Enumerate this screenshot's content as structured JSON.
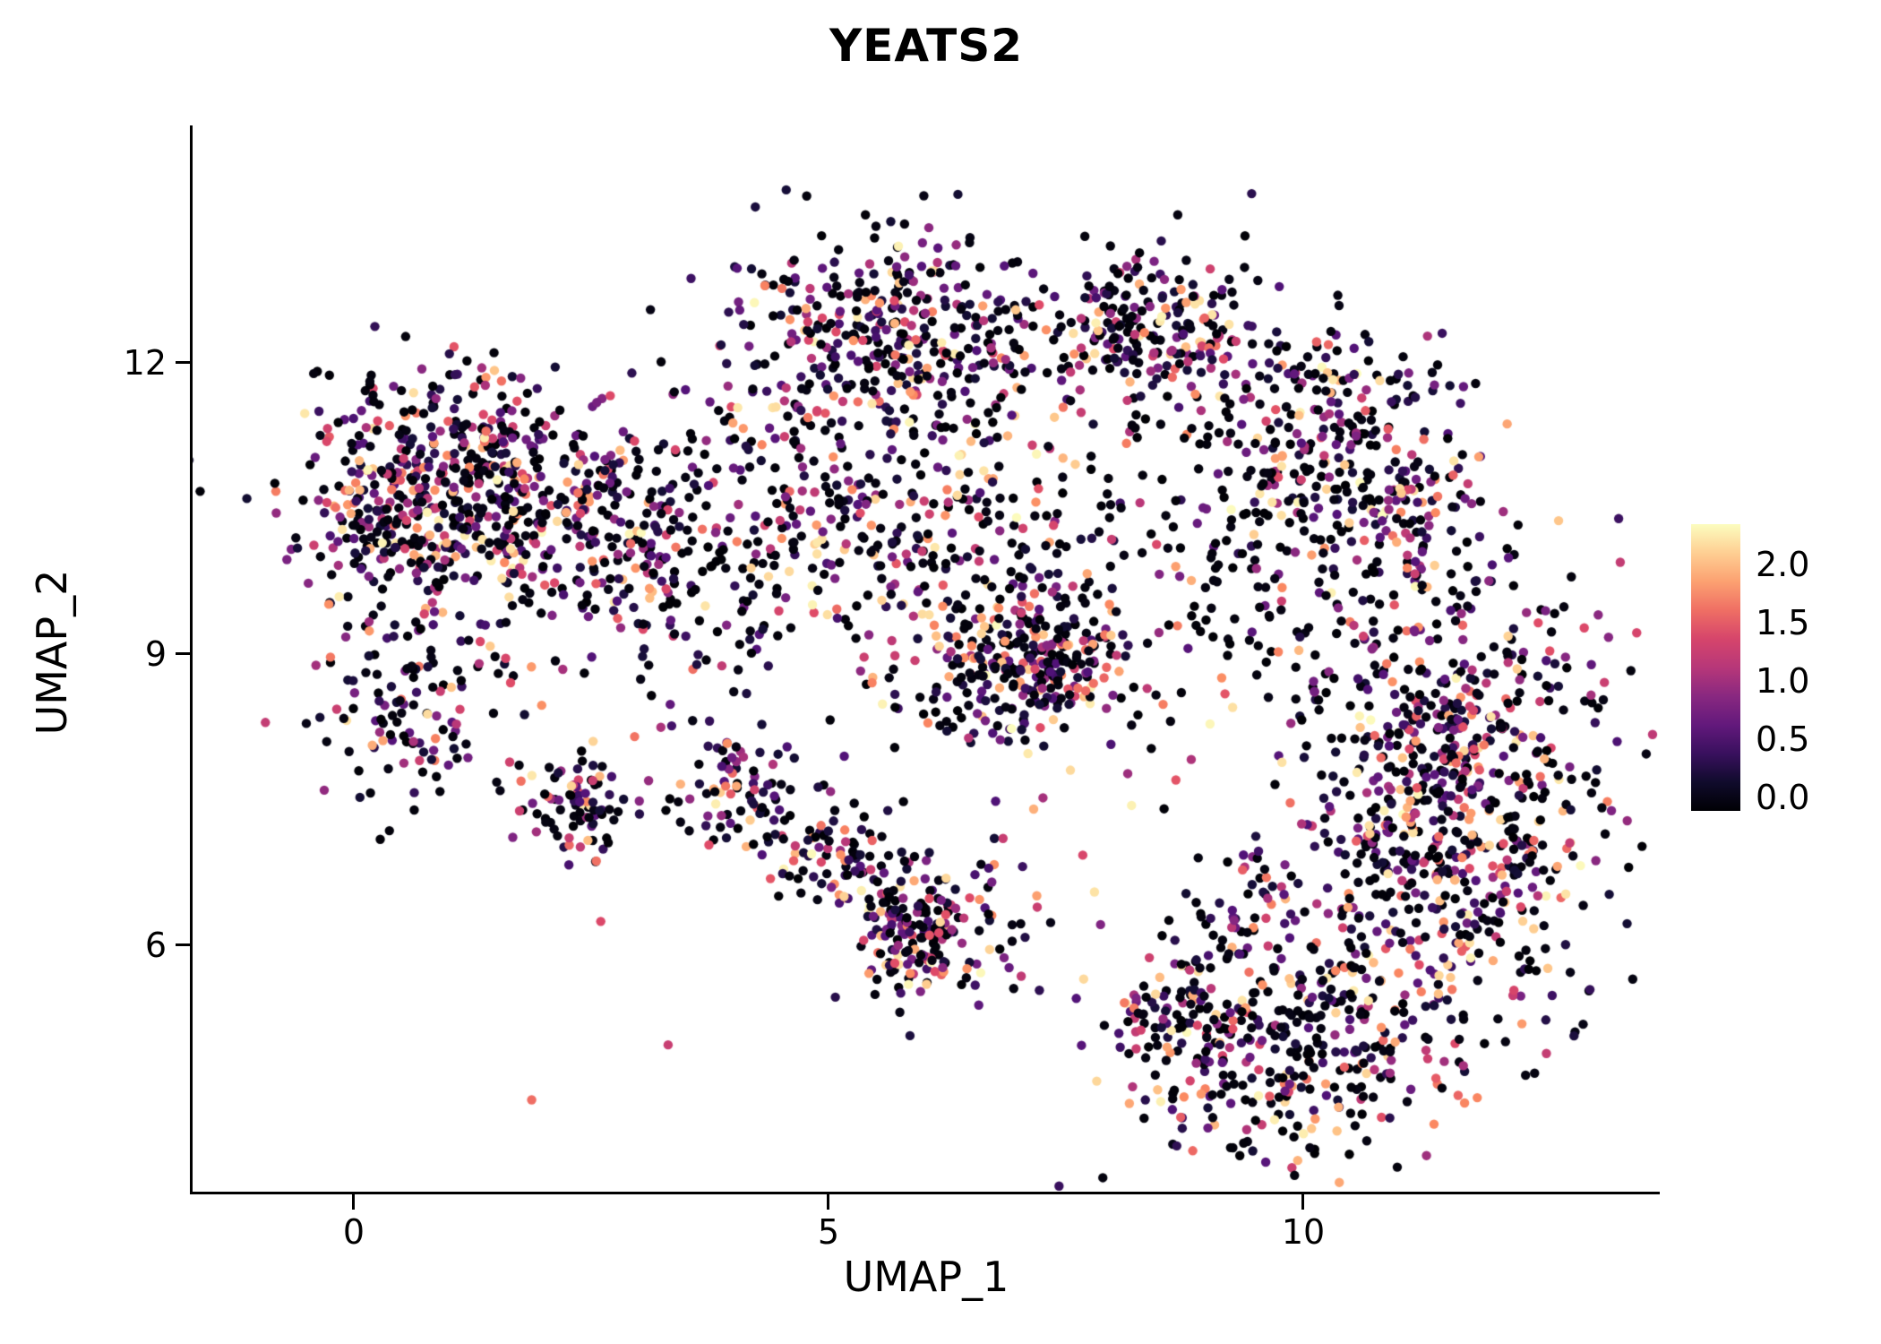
{
  "title": "YEATS2",
  "axes": {
    "x_label": "UMAP_1",
    "y_label": "UMAP_2",
    "x_ticks": [
      0,
      5,
      10
    ],
    "x_tick_labels": [
      "0",
      "5",
      "10"
    ],
    "y_ticks": [
      12,
      9,
      6
    ],
    "y_tick_labels": [
      "12",
      "9",
      "6"
    ],
    "x_range": [
      -1.7,
      13.73
    ],
    "y_range": [
      3.46,
      14.45
    ]
  },
  "colorbar": {
    "tick_labels": [
      "2.0",
      "1.5",
      "1.0",
      "0.5",
      "0.0"
    ],
    "tick_values": [
      2.0,
      1.5,
      1.0,
      0.5,
      0.0
    ],
    "min": 0.0,
    "max": 2.2,
    "display_min": -0.12,
    "display_max": 2.34,
    "colormap": "magma",
    "stops": [
      {
        "t": 0.0,
        "color": "#000004"
      },
      {
        "t": 0.125,
        "color": "#140E36"
      },
      {
        "t": 0.25,
        "color": "#511278"
      },
      {
        "t": 0.375,
        "color": "#7E2482"
      },
      {
        "t": 0.5,
        "color": "#B73779"
      },
      {
        "t": 0.625,
        "color": "#DE4968"
      },
      {
        "t": 0.75,
        "color": "#FB8961"
      },
      {
        "t": 0.875,
        "color": "#FEC488"
      },
      {
        "t": 1.0,
        "color": "#FCFDBF"
      }
    ]
  },
  "chart_data": {
    "type": "scatter",
    "title": "YEATS2",
    "xlabel": "UMAP_1",
    "ylabel": "UMAP_2",
    "xlim": [
      -1.7,
      13.73
    ],
    "ylim": [
      3.46,
      14.45
    ],
    "grid": false,
    "legend_position": "right-colorbar",
    "point_radius_px": 5.2,
    "n_points_estimate": 4520,
    "expression_range": [
      0.0,
      2.2
    ],
    "seed": 42,
    "value_distribution": {
      "zero_fraction": 0.42,
      "zero_band": 0.1,
      "nonzero_min": 0.25,
      "max": 2.2,
      "skew": 1.7
    },
    "clusters": [
      {
        "name": "left-main",
        "type": "gaussian",
        "center": [
          1.05,
          10.65
        ],
        "sd": [
          0.85,
          0.62
        ],
        "n": 650
      },
      {
        "name": "left-lower-tail",
        "type": "gaussian",
        "center": [
          0.55,
          8.45
        ],
        "sd": [
          0.5,
          0.55
        ],
        "n": 120
      },
      {
        "name": "left-lower-blob",
        "type": "gaussian",
        "center": [
          2.35,
          7.45
        ],
        "sd": [
          0.35,
          0.28
        ],
        "n": 90
      },
      {
        "name": "left-mid-bridge",
        "type": "gaussian",
        "center": [
          3.0,
          10.1
        ],
        "sd": [
          0.6,
          0.65
        ],
        "n": 170
      },
      {
        "name": "top-middle",
        "type": "gaussian",
        "center": [
          5.7,
          12.3
        ],
        "sd": [
          0.85,
          0.5
        ],
        "n": 380
      },
      {
        "name": "middle-scatter",
        "type": "gaussian",
        "center": [
          5.4,
          10.3
        ],
        "sd": [
          1.35,
          0.75
        ],
        "n": 380
      },
      {
        "name": "central-knot",
        "type": "gaussian",
        "center": [
          7.1,
          8.9
        ],
        "sd": [
          0.55,
          0.38
        ],
        "n": 300
      },
      {
        "name": "diagonal-strip",
        "type": "strip",
        "from": [
          3.6,
          7.9
        ],
        "to": [
          6.2,
          5.95
        ],
        "width": 0.32,
        "n": 200
      },
      {
        "name": "lower-middle-blob",
        "type": "gaussian",
        "center": [
          6.1,
          6.15
        ],
        "sd": [
          0.45,
          0.4
        ],
        "n": 150
      },
      {
        "name": "top-right",
        "type": "gaussian",
        "center": [
          8.4,
          12.3
        ],
        "sd": [
          0.6,
          0.42
        ],
        "n": 220
      },
      {
        "name": "right-upper-scatter",
        "type": "gaussian",
        "center": [
          10.1,
          11.4
        ],
        "sd": [
          0.55,
          0.6
        ],
        "n": 150
      },
      {
        "name": "right-arm",
        "type": "gaussian",
        "center": [
          11.0,
          10.6
        ],
        "sd": [
          0.5,
          0.7
        ],
        "n": 160
      },
      {
        "name": "middle-right-sparse",
        "type": "gaussian",
        "center": [
          9.4,
          10.2
        ],
        "sd": [
          0.65,
          0.7
        ],
        "n": 130,
        "zero_fraction": 0.7
      },
      {
        "name": "right-main",
        "type": "gaussian",
        "center": [
          11.5,
          7.5
        ],
        "sd": [
          0.85,
          1.25
        ],
        "n": 800
      },
      {
        "name": "bottom-right",
        "type": "gaussian",
        "center": [
          9.7,
          4.95
        ],
        "sd": [
          0.85,
          0.55
        ],
        "n": 350
      },
      {
        "name": "bottom-right-edge",
        "type": "strip",
        "from": [
          8.2,
          4.8
        ],
        "to": [
          9.7,
          6.9
        ],
        "width": 0.25,
        "n": 100
      },
      {
        "name": "field-scatter",
        "type": "gaussian",
        "center": [
          6.8,
          9.2
        ],
        "sd": [
          2.6,
          1.8
        ],
        "n": 170
      }
    ]
  }
}
